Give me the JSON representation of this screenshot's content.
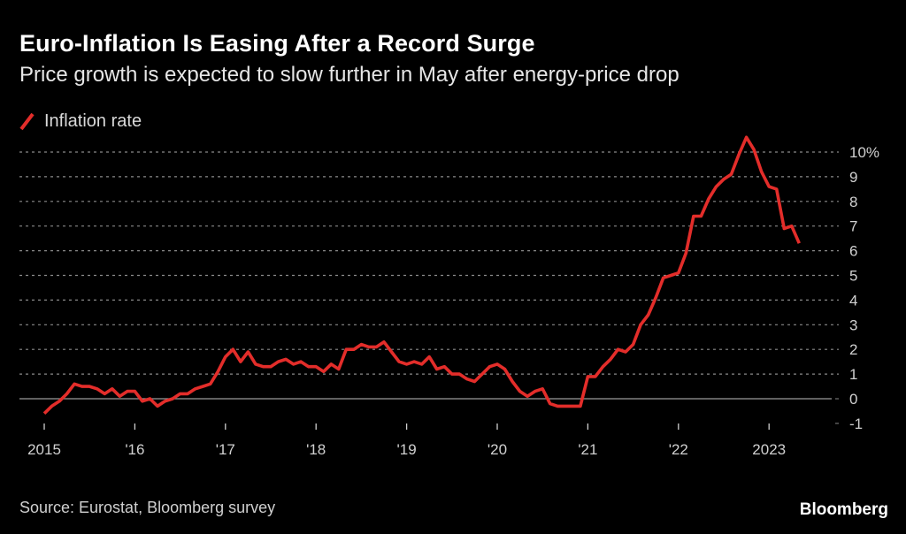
{
  "header": {
    "title": "Euro-Inflation Is Easing After a Record Surge",
    "subtitle": "Price growth is expected to slow further in May after energy-price drop"
  },
  "legend": {
    "label": "Inflation rate",
    "icon": "line-swatch-icon"
  },
  "footer": {
    "source": "Source: Eurostat, Bloomberg survey",
    "brand": "Bloomberg"
  },
  "colors": {
    "background": "#000000",
    "series": "#e32d2a",
    "grid": "#8a8a8a",
    "zero_line": "#9a9a9a",
    "text": "#d0d0d0"
  },
  "chart_data": {
    "type": "line",
    "title": "Euro-Inflation Is Easing After a Record Surge",
    "subtitle": "Price growth is expected to slow further in May after energy-price drop",
    "xlabel": "",
    "ylabel": "",
    "x_start": "2015-01",
    "x_frequency": "monthly",
    "xlim": [
      "2015-01",
      "2023-04"
    ],
    "ylim": [
      -1,
      10.5
    ],
    "y_ticks": [
      -1,
      0,
      1,
      2,
      3,
      4,
      5,
      6,
      7,
      8,
      9,
      10
    ],
    "y_tick_labels": [
      "-1",
      "0",
      "1",
      "2",
      "3",
      "4",
      "5",
      "6",
      "7",
      "8",
      "9",
      "10%"
    ],
    "x_ticks": [
      "2015-01",
      "2016-01",
      "2017-01",
      "2018-01",
      "2019-01",
      "2020-01",
      "2021-01",
      "2022-01",
      "2023-01"
    ],
    "x_tick_labels": [
      "2015",
      "'16",
      "'17",
      "'18",
      "'19",
      "'20",
      "'21",
      "'22",
      "2023"
    ],
    "grid": true,
    "y_axis_side": "right",
    "legend_position": "top-left",
    "series": [
      {
        "name": "Inflation rate",
        "values": [
          -0.6,
          -0.3,
          -0.1,
          0.2,
          0.6,
          0.5,
          0.5,
          0.4,
          0.2,
          0.4,
          0.1,
          0.3,
          0.3,
          -0.1,
          0.0,
          -0.3,
          -0.1,
          0.0,
          0.2,
          0.2,
          0.4,
          0.5,
          0.6,
          1.1,
          1.7,
          2.0,
          1.5,
          1.9,
          1.4,
          1.3,
          1.3,
          1.5,
          1.6,
          1.4,
          1.5,
          1.3,
          1.3,
          1.1,
          1.4,
          1.2,
          2.0,
          2.0,
          2.2,
          2.1,
          2.1,
          2.3,
          1.9,
          1.5,
          1.4,
          1.5,
          1.4,
          1.7,
          1.2,
          1.3,
          1.0,
          1.0,
          0.8,
          0.7,
          1.0,
          1.3,
          1.4,
          1.2,
          0.7,
          0.3,
          0.1,
          0.3,
          0.4,
          -0.2,
          -0.3,
          -0.3,
          -0.3,
          -0.3,
          0.9,
          0.9,
          1.3,
          1.6,
          2.0,
          1.9,
          2.2,
          3.0,
          3.4,
          4.1,
          4.9,
          5.0,
          5.1,
          5.9,
          7.4,
          7.4,
          8.1,
          8.6,
          8.9,
          9.1,
          9.9,
          10.6,
          10.1,
          9.2,
          8.6,
          8.5,
          6.9,
          7.0,
          6.3
        ]
      }
    ]
  }
}
